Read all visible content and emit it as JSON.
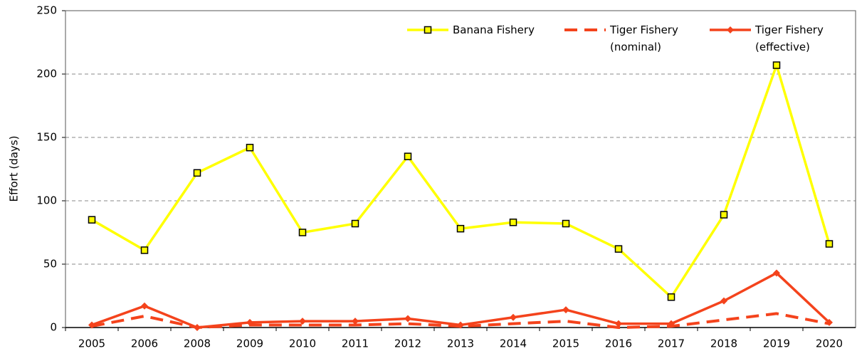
{
  "chart_data": {
    "type": "line",
    "y_label": "Effort (days)",
    "categories": [
      "2005",
      "2006",
      "2008",
      "2009",
      "2010",
      "2011",
      "2012",
      "2013",
      "2014",
      "2015",
      "2016",
      "2017",
      "2018",
      "2019",
      "2020"
    ],
    "series": [
      {
        "name": "Banana Fishery",
        "color": "#ffff00",
        "line": "solid",
        "marker": "square",
        "values": [
          85,
          61,
          122,
          142,
          75,
          82,
          135,
          78,
          83,
          82,
          62,
          24,
          89,
          207,
          66
        ]
      },
      {
        "name": "Tiger Fishery\n(nominal)",
        "color": "#f4431c",
        "line": "dashed",
        "marker": "none",
        "values": [
          1,
          9,
          0,
          2,
          2,
          2,
          3,
          1,
          3,
          5,
          0,
          1,
          6,
          11,
          3
        ]
      },
      {
        "name": "Tiger Fishery\n(effective)",
        "color": "#f4431c",
        "line": "solid",
        "marker": "diamond",
        "values": [
          2,
          17,
          0,
          4,
          5,
          5,
          7,
          2,
          8,
          14,
          3,
          3,
          21,
          43,
          4
        ]
      }
    ],
    "ylim": [
      0,
      250
    ],
    "yticks": [
      0,
      50,
      100,
      150,
      200,
      250
    ],
    "grid": true,
    "legend": "top-right"
  }
}
